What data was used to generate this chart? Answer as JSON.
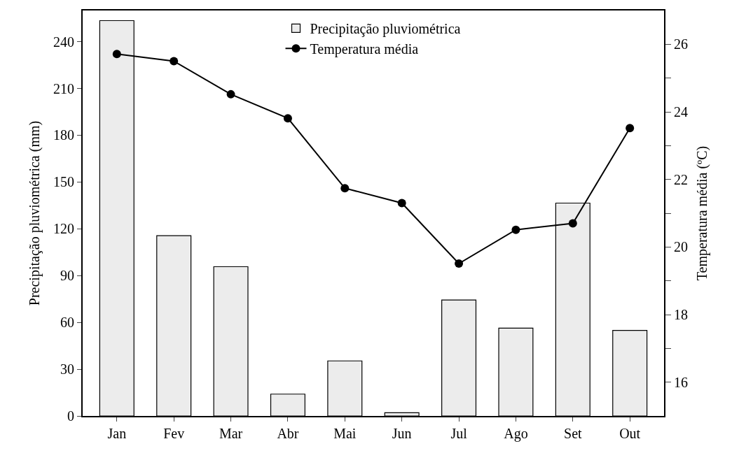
{
  "chart_data": {
    "type": "bar",
    "ylabel": "Precipitação pluviométrica (mm)",
    "y2label": "Temperatura média (ºC)",
    "categories": [
      "Jan",
      "Fev",
      "Mar",
      "Abr",
      "Mai",
      "Jun",
      "Jul",
      "Ago",
      "Set",
      "Out"
    ],
    "series": [
      {
        "name": "Precipitação pluviométrica",
        "color": "#ececec",
        "values": [
          253.5,
          115.6,
          95.7,
          14,
          35.3,
          2.1,
          74.4,
          56.3,
          136.5,
          54.9
        ]
      },
      {
        "name": "Temperatura média",
        "type": "line",
        "axis": "y2",
        "color": "#000000",
        "marker": "circle",
        "values": [
          25.71,
          25.5,
          24.52,
          23.81,
          21.74,
          21.3,
          19.51,
          20.51,
          20.7,
          23.52
        ]
      }
    ],
    "ylim": [
      0,
      260
    ],
    "yticks": [
      0,
      30,
      60,
      90,
      120,
      150,
      180,
      210,
      240
    ],
    "y2lim": [
      15,
      27
    ],
    "y2ticks": [
      16,
      {
        "value": 17,
        "label": null
      },
      18,
      {
        "value": 19,
        "label": null
      },
      20,
      {
        "value": 21,
        "label": null
      },
      22,
      {
        "value": 23,
        "label": null
      },
      24,
      {
        "value": 25,
        "label": null
      },
      26
    ],
    "grid": false,
    "legend": "top"
  }
}
